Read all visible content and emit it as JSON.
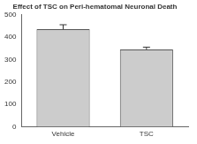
{
  "chart_data": {
    "type": "bar",
    "title": "Effect of TSC on Peri-hematomal Neuronal Death",
    "categories": [
      "Vehicle",
      "TSC"
    ],
    "values": [
      435,
      345
    ],
    "errors": [
      20,
      10
    ],
    "color": "#cccccc",
    "ylim": [
      0,
      500
    ],
    "yticks": [
      0,
      100,
      200,
      300,
      400,
      500
    ],
    "grid": false
  }
}
